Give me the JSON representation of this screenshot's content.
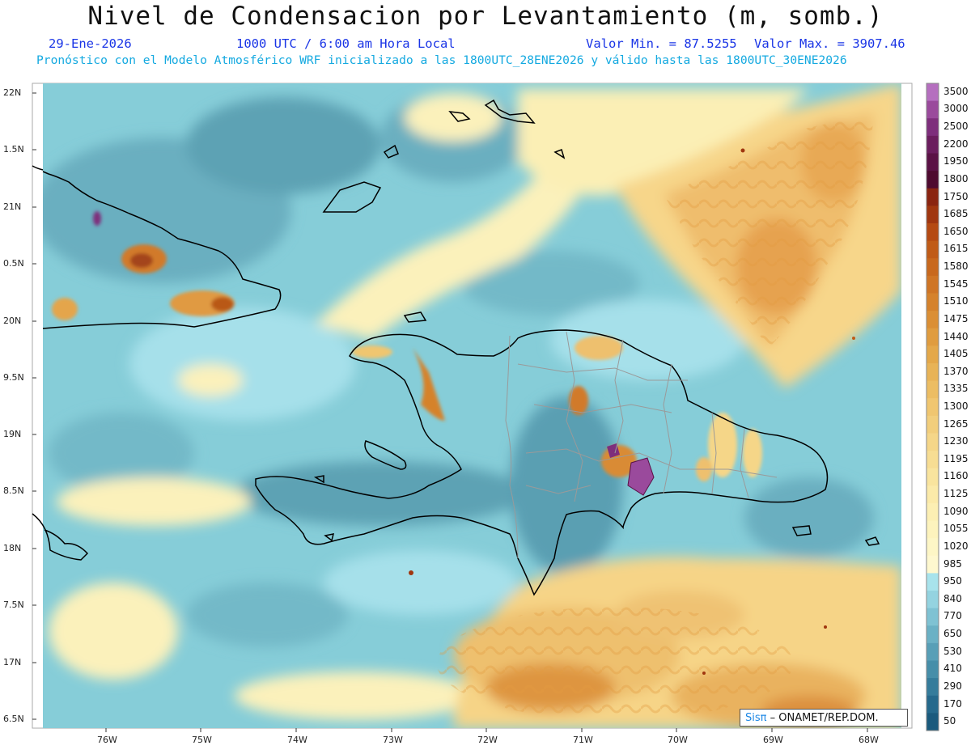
{
  "header": {
    "title": "Nivel de Condensacion por Levantamiento (m, somb.)",
    "date": "29-Ene-2026",
    "time": "1000 UTC / 6:00 am Hora Local",
    "vmin": "Valor Min. = 87.5255",
    "vmax": "Valor Max. = 3907.46",
    "forecast": "Pronóstico con el Modelo Atmosférico WRF inicializado a las 1800UTC_28ENE2026 y válido hasta las  1800UTC_30ENE2026"
  },
  "axes": {
    "lat_labels": [
      "22N",
      "1.5N",
      "21N",
      "0.5N",
      "20N",
      "9.5N",
      "19N",
      "8.5N",
      "18N",
      "7.5N",
      "17N",
      "6.5N"
    ],
    "lon_labels": [
      "76W",
      "75W",
      "74W",
      "73W",
      "72W",
      "71W",
      "70W",
      "69W",
      "68W"
    ]
  },
  "colorbar": {
    "levels": [
      "3500",
      "3000",
      "2500",
      "2200",
      "1950",
      "1800",
      "1750",
      "1685",
      "1650",
      "1615",
      "1580",
      "1545",
      "1510",
      "1475",
      "1440",
      "1405",
      "1370",
      "1335",
      "1300",
      "1265",
      "1230",
      "1195",
      "1160",
      "1125",
      "1090",
      "1055",
      "1020",
      "985",
      "950",
      "840",
      "770",
      "650",
      "530",
      "410",
      "290",
      "170",
      "50"
    ],
    "colors": [
      "#b56fbf",
      "#9a4a9c",
      "#7e2e7c",
      "#6b1d5e",
      "#5a1145",
      "#4e0a2f",
      "#8a2410",
      "#a0360f",
      "#b54a12",
      "#c05b17",
      "#c8681d",
      "#cf7525",
      "#d5822c",
      "#db8f35",
      "#e09c3f",
      "#e4a84a",
      "#e8b357",
      "#ecbd63",
      "#f0c670",
      "#f2ce7c",
      "#f5d688",
      "#f7dd93",
      "#f9e49e",
      "#fbeaa9",
      "#fcefb3",
      "#fdf3bd",
      "#fdf6c6",
      "#fef8cf",
      "#a8e3ec",
      "#94d3e0",
      "#7fc2d3",
      "#6bb1c5",
      "#589fb7",
      "#468ea9",
      "#357c9b",
      "#25698c",
      "#1a5a7d"
    ]
  },
  "logo": {
    "sis": "Sisπ",
    "rest": " – ONAMET/REP.DOM."
  }
}
